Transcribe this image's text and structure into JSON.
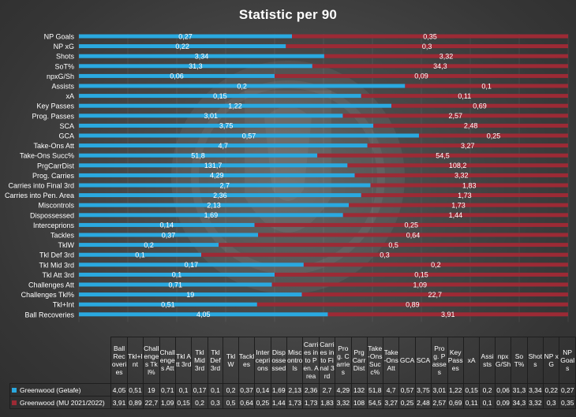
{
  "colors": {
    "getafe": "#2aa9e0",
    "mu": "#9c2a35"
  },
  "chart_data": {
    "type": "bar",
    "orientation": "horizontal-stacked-percent",
    "title": "Statistic per 90",
    "categories": [
      "NP Goals",
      "NP xG",
      "Shots",
      "SoT%",
      "npxG/Sh",
      "Assists",
      "xA",
      "Key Passes",
      "Prog. Passes",
      "SCA",
      "GCA",
      "Take-Ons Att",
      "Take-Ons Succ%",
      "PrgCarrDist",
      "Prog. Carries",
      "Carries into Final 3rd",
      "Carries into Pen. Area",
      "Miscontrols",
      "Dispossessed",
      "Interceprions",
      "Tackles",
      "TklW",
      "Tkl Def 3rd",
      "Tkl Mid 3rd",
      "Tkl Att 3rd",
      "Challenges Att",
      "Challenges Tkl%",
      "Tkl+Int",
      "Ball Recoveries"
    ],
    "series": [
      {
        "name": "Greenwood (Getafe)",
        "color": "#2aa9e0",
        "values": [
          "0,27",
          "0,22",
          "3,34",
          "31,3",
          "0,06",
          "0,2",
          "0,15",
          "1,22",
          "3,01",
          "3,75",
          "0,57",
          "4,7",
          "51,8",
          "131,7",
          "4,29",
          "2,7",
          "2,36",
          "2,13",
          "1,69",
          "0,14",
          "0,37",
          "0,2",
          "0,1",
          "0,17",
          "0,1",
          "0,71",
          "19",
          "0,51",
          "4,05"
        ]
      },
      {
        "name": "Greenwood (MU 2021/2022)",
        "color": "#9c2a35",
        "values": [
          "0,35",
          "0,3",
          "3,32",
          "34,3",
          "0,09",
          "0,1",
          "0,11",
          "0,69",
          "2,57",
          "2,48",
          "0,25",
          "3,27",
          "54,5",
          "108,2",
          "3,32",
          "1,83",
          "1,73",
          "1,73",
          "1,44",
          "0,25",
          "0,64",
          "0,5",
          "0,3",
          "0,2",
          "0,15",
          "1,09",
          "22,7",
          "0,89",
          "3,91"
        ]
      }
    ]
  },
  "table": {
    "headers": [
      "Ball Recoveries",
      "Tkl+Int",
      "Challenges Tkl%",
      "Challenges Att",
      "Tkl Att 3rd",
      "Tkl Mid 3rd",
      "Tkl Def 3rd",
      "TklW",
      "Tackles",
      "Interceprions",
      "Dispossessed",
      "Miscontrols",
      "Carries into Pen. Area",
      "Carries into Final 3rd",
      "Prog. Carries",
      "PrgCarrDist",
      "Take-Ons Succ%",
      "Take-Ons Att",
      "GCA",
      "SCA",
      "Prog. Passes",
      "Key Passes",
      "xA",
      "Assists",
      "npxG/Sh",
      "SoT%",
      "Shots",
      "NP xG",
      "NP Goals"
    ],
    "rows": [
      {
        "series": "Greenwood (Getafe)",
        "values": [
          "4,05",
          "0,51",
          "19",
          "0,71",
          "0,1",
          "0,17",
          "0,1",
          "0,2",
          "0,37",
          "0,14",
          "1,69",
          "2,13",
          "2,36",
          "2,7",
          "4,29",
          "132",
          "51,8",
          "4,7",
          "0,57",
          "3,75",
          "3,01",
          "1,22",
          "0,15",
          "0,2",
          "0,06",
          "31,3",
          "3,34",
          "0,22",
          "0,27"
        ]
      },
      {
        "series": "Greenwood (MU 2021/2022)",
        "values": [
          "3,91",
          "0,89",
          "22,7",
          "1,09",
          "0,15",
          "0,2",
          "0,3",
          "0,5",
          "0,64",
          "0,25",
          "1,44",
          "1,73",
          "1,73",
          "1,83",
          "3,32",
          "108",
          "54,5",
          "3,27",
          "0,25",
          "2,48",
          "2,57",
          "0,69",
          "0,11",
          "0,1",
          "0,09",
          "34,3",
          "3,32",
          "0,3",
          "0,35"
        ]
      }
    ]
  }
}
